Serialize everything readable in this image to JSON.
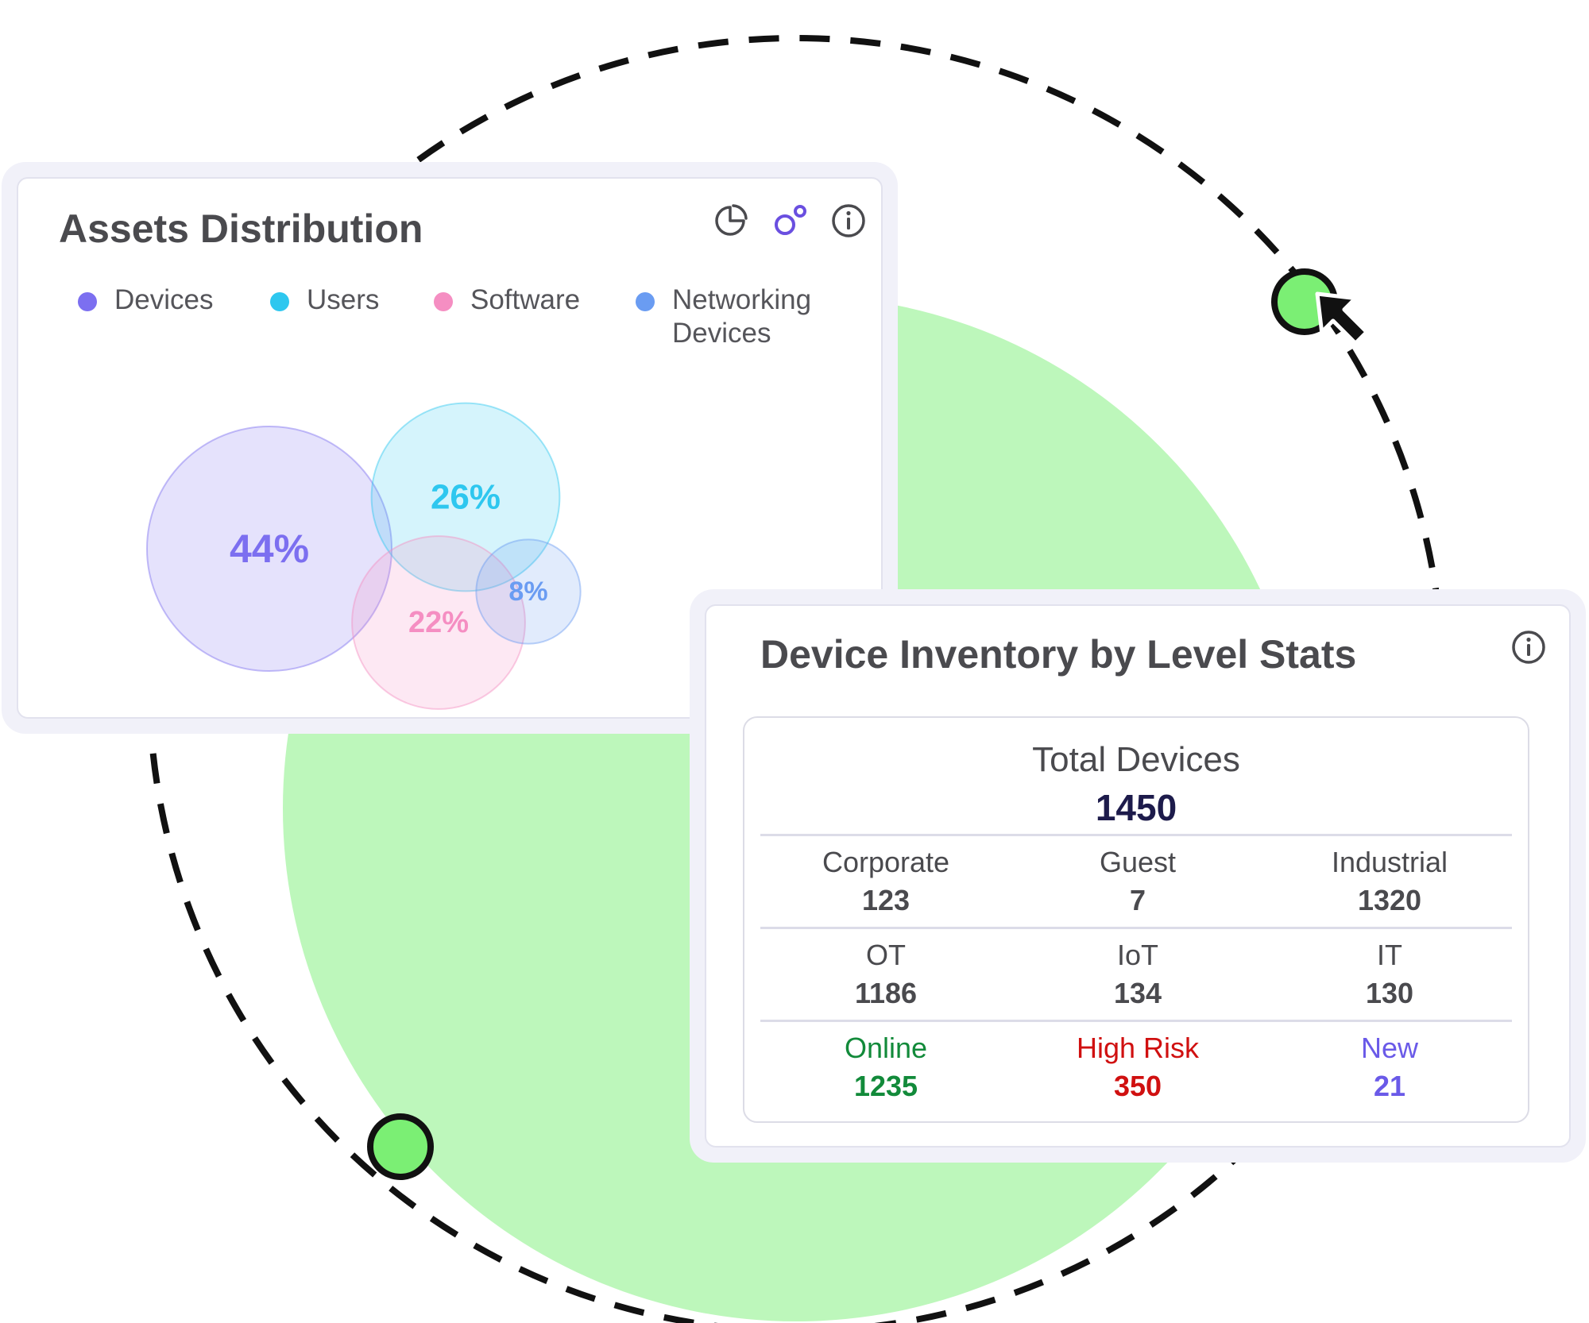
{
  "colors": {
    "accent_green": "#bdf7bb",
    "marker_green": "#7bef74",
    "devices": "#7c6ff0",
    "users": "#2ec7ef",
    "software": "#f58ec2",
    "networking": "#6a9cf2",
    "online": "#128a3a",
    "high_risk": "#d01010",
    "new": "#6a5ae8"
  },
  "assets_distribution": {
    "title": "Assets Distribution",
    "icons": [
      "pie-chart-icon",
      "bubble-chart-icon",
      "info-icon"
    ],
    "legend": [
      {
        "label": "Devices",
        "color": "#7c6ff0"
      },
      {
        "label": "Users",
        "color": "#2ec7ef"
      },
      {
        "label": "Software",
        "color": "#f58ec2"
      },
      {
        "label": "Networking Devices",
        "color": "#6a9cf2"
      }
    ]
  },
  "chart_data": {
    "type": "bubble",
    "categories": [
      "Devices",
      "Users",
      "Software",
      "Networking Devices"
    ],
    "values": [
      44,
      26,
      22,
      8
    ],
    "labels": [
      "44%",
      "26%",
      "22%",
      "8%"
    ],
    "unit": "%"
  },
  "device_inventory": {
    "title": "Device Inventory by Level Stats",
    "info_icon": "info-icon",
    "total_label": "Total Devices",
    "total_value": "1450",
    "rows": [
      [
        {
          "label": "Corporate",
          "value": "123"
        },
        {
          "label": "Guest",
          "value": "7"
        },
        {
          "label": "Industrial",
          "value": "1320"
        }
      ],
      [
        {
          "label": "OT",
          "value": "1186"
        },
        {
          "label": "IoT",
          "value": "134"
        },
        {
          "label": "IT",
          "value": "130"
        }
      ],
      [
        {
          "label": "Online",
          "value": "1235",
          "color": "#128a3a"
        },
        {
          "label": "High Risk",
          "value": "350",
          "color": "#d01010"
        },
        {
          "label": "New",
          "value": "21",
          "color": "#6a5ae8"
        }
      ]
    ]
  }
}
